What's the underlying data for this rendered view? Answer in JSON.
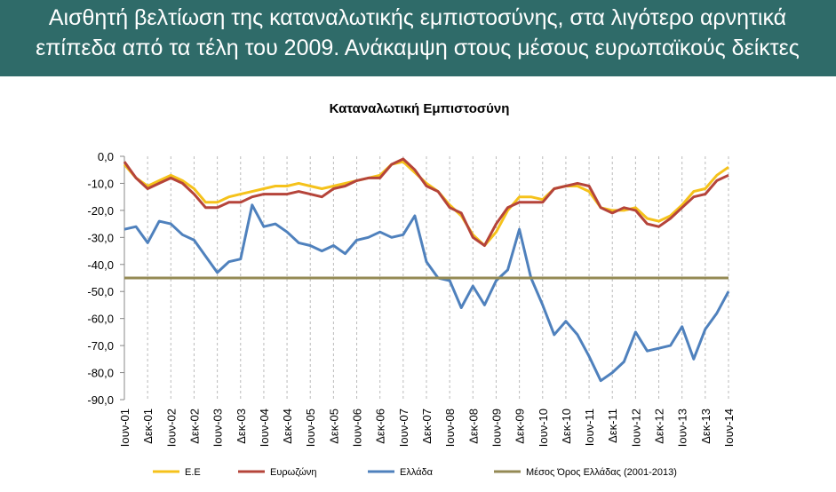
{
  "header": {
    "title_lines": [
      "Αισθητή βελτίωση της καταναλωτικής εμπιστοσύνης, στα λιγότερο αρνητικά",
      "επίπεδα από τα τέλη του 2009. Ανάκαμψη στους μέσους ευρωπαϊκούς δείκτες"
    ]
  },
  "chart_data": {
    "type": "line",
    "title": "Καταναλωτική Εμπιστοσύνη",
    "categories": [
      "Ιουν-01",
      null,
      "Δεκ-01",
      null,
      "Ιουν-02",
      null,
      "Δεκ-02",
      null,
      "Ιουν-03",
      null,
      "Δεκ-03",
      null,
      "Ιουν-04",
      null,
      "Δεκ-04",
      null,
      "Ιουν-05",
      null,
      "Δεκ-05",
      null,
      "Ιουν-06",
      null,
      "Δεκ-06",
      null,
      "Ιουν-07",
      null,
      "Δεκ-07",
      null,
      "Ιουν-08",
      null,
      "Δεκ-08",
      null,
      "Ιουν-09",
      null,
      "Δεκ-09",
      null,
      "Ιουν-10",
      null,
      "Δεκ-10",
      null,
      "Ιουν-11",
      null,
      "Δεκ-11",
      null,
      "Ιουν-12",
      null,
      "Δεκ-12",
      null,
      "Ιουν-13",
      null,
      "Δεκ-13",
      null,
      "Ιουν-14"
    ],
    "series": [
      {
        "name": "Ε.Ε",
        "color": "#f5c21b",
        "values": [
          -3,
          -8,
          -11,
          -9,
          -7,
          -9,
          -12,
          -17,
          -17,
          -15,
          -14,
          -13,
          -12,
          -11,
          -11,
          -10,
          -11,
          -12,
          -11,
          -10,
          -9,
          -8,
          -7,
          -3,
          -2,
          -6,
          -10,
          -13,
          -18,
          -22,
          -29,
          -33,
          -28,
          -20,
          -15,
          -15,
          -16,
          -12,
          -11,
          -11,
          -13,
          -19,
          -20,
          -20,
          -19,
          -23,
          -24,
          -22,
          -18,
          -13,
          -12,
          -7,
          -4
        ]
      },
      {
        "name": "Ευρωζώνη",
        "color": "#b5443a",
        "values": [
          -2,
          -8,
          -12,
          -10,
          -8,
          -10,
          -14,
          -19,
          -19,
          -17,
          -17,
          -15,
          -14,
          -14,
          -14,
          -13,
          -14,
          -15,
          -12,
          -11,
          -9,
          -8,
          -8,
          -3,
          -1,
          -5,
          -11,
          -13,
          -19,
          -21,
          -30,
          -33,
          -25,
          -19,
          -17,
          -17,
          -17,
          -12,
          -11,
          -10,
          -11,
          -19,
          -21,
          -19,
          -20,
          -25,
          -26,
          -23,
          -19,
          -15,
          -14,
          -9,
          -7
        ]
      },
      {
        "name": "Ελλάδα",
        "color": "#4f81bd",
        "values": [
          -27,
          -26,
          -32,
          -24,
          -25,
          -29,
          -31,
          -37,
          -43,
          -39,
          -38,
          -18,
          -26,
          -25,
          -28,
          -32,
          -33,
          -35,
          -33,
          -36,
          -31,
          -30,
          -28,
          -30,
          -29,
          -22,
          -39,
          -45,
          -46,
          -56,
          -48,
          -55,
          -46,
          -42,
          -27,
          -45,
          -55,
          -66,
          -61,
          -66,
          -74,
          -83,
          -80,
          -76,
          -65,
          -72,
          -71,
          -70,
          -63,
          -75,
          -64,
          -58,
          -50
        ]
      },
      {
        "name": "Μέσος Όρος Ελλάδας (2001-2013)",
        "color": "#948a54",
        "values": [
          -45,
          -45,
          -45,
          -45,
          -45,
          -45,
          -45,
          -45,
          -45,
          -45,
          -45,
          -45,
          -45,
          -45,
          -45,
          -45,
          -45,
          -45,
          -45,
          -45,
          -45,
          -45,
          -45,
          -45,
          -45,
          -45,
          -45,
          -45,
          -45,
          -45,
          -45,
          -45,
          -45,
          -45,
          -45,
          -45,
          -45,
          -45,
          -45,
          -45,
          -45,
          -45,
          -45,
          -45,
          -45,
          -45,
          -45,
          -45,
          -45,
          -45,
          -45,
          -45,
          -45
        ]
      }
    ],
    "ylim": [
      -90,
      0
    ],
    "yticks": [
      {
        "value": 0,
        "label": "0,0"
      },
      {
        "value": -10,
        "label": "-10,0"
      },
      {
        "value": -20,
        "label": "-20,0"
      },
      {
        "value": -30,
        "label": "-30,0"
      },
      {
        "value": -40,
        "label": "-40,0"
      },
      {
        "value": -50,
        "label": "-50,0"
      },
      {
        "value": -60,
        "label": "-60,0"
      },
      {
        "value": -70,
        "label": "-70,0"
      },
      {
        "value": -80,
        "label": "-80,0"
      },
      {
        "value": -90,
        "label": "-90,0"
      }
    ],
    "xgrid": true,
    "legend": "bottom"
  }
}
